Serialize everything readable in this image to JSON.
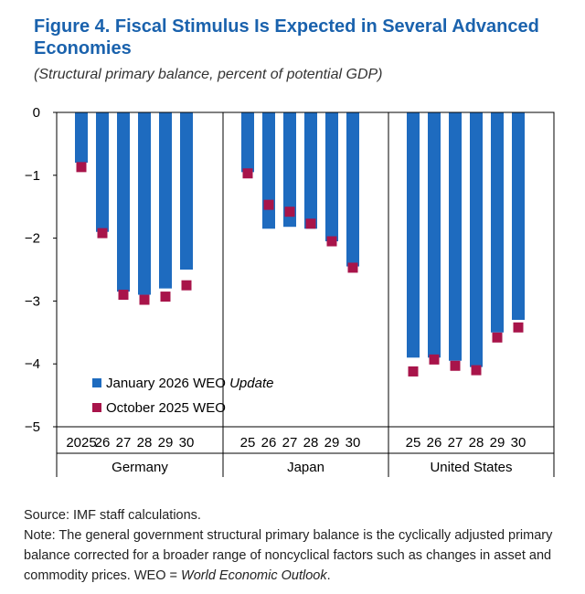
{
  "colors": {
    "series1": "#1e6bbf",
    "series2": "#a8144a",
    "title": "#1a62ad",
    "axis": "#000000"
  },
  "chart_data": {
    "type": "bar",
    "title_line1": "Figure 4.  Fiscal Stimulus Is Expected in Several Advanced",
    "title_line2": "Economies",
    "subtitle": "(Structural primary balance, percent of potential GDP)",
    "ylim": [
      -5,
      0
    ],
    "yticks": [
      0,
      -1,
      -2,
      -3,
      -4,
      -5
    ],
    "groups": [
      {
        "name": "Germany",
        "tick_labels": [
          "2025",
          "26",
          "27",
          "28",
          "29",
          "30"
        ],
        "january_2026_weo_update": [
          -0.8,
          -1.9,
          -2.85,
          -2.9,
          -2.8,
          -2.5
        ],
        "october_2025_weo": [
          -0.87,
          -1.92,
          -2.9,
          -2.98,
          -2.93,
          -2.75
        ]
      },
      {
        "name": "Japan",
        "tick_labels": [
          "25",
          "26",
          "27",
          "28",
          "29",
          "30"
        ],
        "january_2026_weo_update": [
          -0.95,
          -1.85,
          -1.82,
          -1.85,
          -2.05,
          -2.45
        ],
        "october_2025_weo": [
          -0.97,
          -1.47,
          -1.58,
          -1.77,
          -2.05,
          -2.47
        ]
      },
      {
        "name": "United States",
        "tick_labels": [
          "25",
          "26",
          "27",
          "28",
          "29",
          "30"
        ],
        "january_2026_weo_update": [
          -3.9,
          -3.9,
          -3.95,
          -4.05,
          -3.5,
          -3.3
        ],
        "october_2025_weo": [
          -4.12,
          -3.93,
          -4.03,
          -4.1,
          -3.58,
          -3.42
        ]
      }
    ],
    "legend": {
      "series1_prefix": "January 2026 WEO ",
      "series1_italic": "Update",
      "series2": "October 2025 WEO"
    }
  },
  "footnotes": {
    "source": "Source: IMF staff calculations.",
    "note_prefix": "Note: The general government structural primary balance is the cyclically adjusted primary balance corrected for a broader range of noncyclical factors such as changes in asset and commodity prices. WEO = ",
    "note_italic": "World Economic Outlook",
    "note_suffix": "."
  }
}
